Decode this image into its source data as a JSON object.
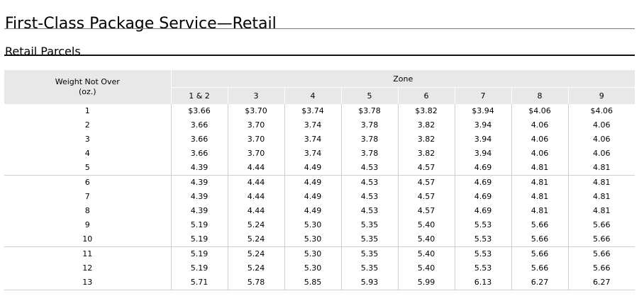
{
  "title": "First-Class Package Service—Retail",
  "subtitle": "Retail Parcels",
  "table": {
    "weight_header_line1": "Weight Not Over",
    "weight_header_line2": "(oz.)",
    "zone_header": "Zone",
    "zones": [
      "1 & 2",
      "3",
      "4",
      "5",
      "6",
      "7",
      "8",
      "9"
    ],
    "rows": [
      {
        "weight": "1",
        "values": [
          "$3.66",
          "$3.70",
          "$3.74",
          "$3.78",
          "$3.82",
          "$3.94",
          "$4.06",
          "$4.06"
        ]
      },
      {
        "weight": "2",
        "values": [
          "3.66",
          "3.70",
          "3.74",
          "3.78",
          "3.82",
          "3.94",
          "4.06",
          "4.06"
        ]
      },
      {
        "weight": "3",
        "values": [
          "3.66",
          "3.70",
          "3.74",
          "3.78",
          "3.82",
          "3.94",
          "4.06",
          "4.06"
        ]
      },
      {
        "weight": "4",
        "values": [
          "3.66",
          "3.70",
          "3.74",
          "3.78",
          "3.82",
          "3.94",
          "4.06",
          "4.06"
        ]
      },
      {
        "weight": "5",
        "values": [
          "4.39",
          "4.44",
          "4.49",
          "4.53",
          "4.57",
          "4.69",
          "4.81",
          "4.81"
        ]
      },
      {
        "weight": "6",
        "values": [
          "4.39",
          "4.44",
          "4.49",
          "4.53",
          "4.57",
          "4.69",
          "4.81",
          "4.81"
        ]
      },
      {
        "weight": "7",
        "values": [
          "4.39",
          "4.44",
          "4.49",
          "4.53",
          "4.57",
          "4.69",
          "4.81",
          "4.81"
        ]
      },
      {
        "weight": "8",
        "values": [
          "4.39",
          "4.44",
          "4.49",
          "4.53",
          "4.57",
          "4.69",
          "4.81",
          "4.81"
        ]
      },
      {
        "weight": "9",
        "values": [
          "5.19",
          "5.24",
          "5.30",
          "5.35",
          "5.40",
          "5.53",
          "5.66",
          "5.66"
        ]
      },
      {
        "weight": "10",
        "values": [
          "5.19",
          "5.24",
          "5.30",
          "5.35",
          "5.40",
          "5.53",
          "5.66",
          "5.66"
        ]
      },
      {
        "weight": "11",
        "values": [
          "5.19",
          "5.24",
          "5.30",
          "5.35",
          "5.40",
          "5.53",
          "5.66",
          "5.66"
        ]
      },
      {
        "weight": "12",
        "values": [
          "5.19",
          "5.24",
          "5.30",
          "5.35",
          "5.40",
          "5.53",
          "5.66",
          "5.66"
        ]
      },
      {
        "weight": "13",
        "values": [
          "5.71",
          "5.78",
          "5.85",
          "5.93",
          "5.99",
          "6.13",
          "6.27",
          "6.27"
        ]
      }
    ]
  }
}
